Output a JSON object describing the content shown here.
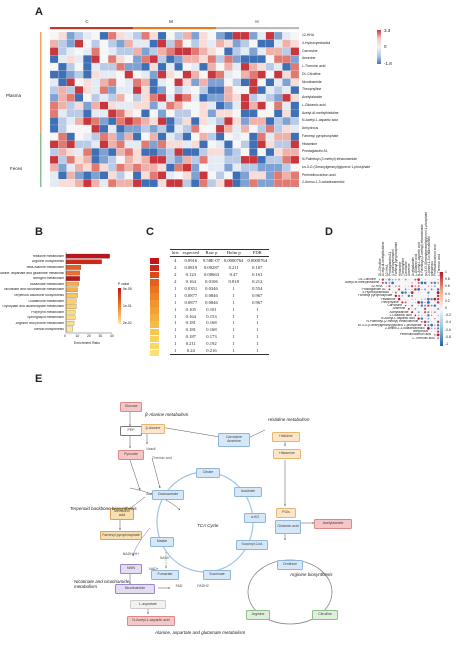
{
  "panels": {
    "a": "A",
    "b": "B",
    "c": "C",
    "d": "D",
    "e": "E"
  },
  "panel_a": {
    "groups": [
      "C",
      "M",
      "H"
    ],
    "group_colors": [
      "#c0392b",
      "#e67e22",
      "#bbbbbb"
    ],
    "row_groups": [
      {
        "name": "Plasma",
        "color": "#f4a460"
      },
      {
        "name": "Feces",
        "color": "#8fbc8f"
      }
    ],
    "rows": [
      "12-HHA",
      "4-Hydroxyestradiol",
      "Carnosine",
      "Anserine",
      "L-Threonic acid",
      "DL-Citrulline",
      "Nicotinamide",
      "Theophylline",
      "Acetylalanide",
      "L-Glutamic acid",
      "Acetyl-dl-methylhistidine",
      "N-Acetyl-L-aspartic acid",
      "Anhydrous",
      "Farnesyl pyrophosphate",
      "Histamine",
      "Prostaglandin A1",
      "N-Palmitoyl-(2-methyl) ethanolamide",
      "sn-3-O-(Geranylgeranyl)glycerol 1-phosphate",
      "Perimidinocarbon acid",
      "2-Amino-1,3-octadecanediol"
    ],
    "colorbar": {
      "max": "3.3",
      "mid": "0",
      "min": "-1.8"
    }
  },
  "panel_b": {
    "categories": [
      "Histidine metabolism",
      "Arginine biosynthesis",
      "beta-Alanine metabolism",
      "Alanine, aspartate and glutamate metabolism",
      "Nitrogen metabolism",
      "Butanoate metabolism",
      "Nicotinate and nicotinamide metabolism",
      "Terpenoid backbone biosynthesis",
      "Glutathione metabolism",
      "Glyoxylate and dicarboxylate metabolism",
      "Porphyrin metabolism",
      "Sphingolipid metabolism",
      "Arginine and proline metabolism",
      "Steroid biosynthesis"
    ],
    "values": [
      38,
      31,
      13,
      12,
      12,
      11,
      10,
      10,
      9,
      9,
      8,
      8,
      7,
      6
    ],
    "colors": [
      "#c0141c",
      "#d02818",
      "#e06020",
      "#e87030",
      "#c0141c",
      "#f4b050",
      "#f4b050",
      "#f8c860",
      "#fad070",
      "#fad070",
      "#fbdc80",
      "#fbdc80",
      "#fce090",
      "#fde8a0"
    ],
    "xticks": [
      "0",
      "10",
      "20",
      "30",
      "40"
    ],
    "xlabel": "Enrichment Ratio",
    "legend_title": "P value",
    "legend_ticks": [
      "5e-05",
      "1e-01",
      "2e-02"
    ]
  },
  "panel_c": {
    "headers": [
      "hits",
      "expected",
      "Raw p",
      "Holm p",
      "FDR"
    ],
    "rows": [
      [
        "4",
        "0.0916",
        "9.58E-07",
        "0.0000764",
        "0.0000764"
      ],
      [
        "2",
        "0.0819",
        "0.00287",
        "0.211",
        "0.107"
      ],
      [
        "2",
        "0.123",
        "0.00663",
        "0.47",
        "0.161"
      ],
      [
        "2",
        "0.164",
        "0.0106",
        "0.818",
        "0.212"
      ],
      [
        "1",
        "0.0351",
        "0.0346",
        "1",
        "0.554"
      ],
      [
        "1",
        "0.0877",
        "0.0846",
        "1",
        "0.967"
      ],
      [
        "1",
        "0.0877",
        "0.0846",
        "1",
        "0.967"
      ],
      [
        "1",
        "0.105",
        "0.101",
        "1",
        "1"
      ],
      [
        "1",
        "0.164",
        "0.153",
        "1",
        "1"
      ],
      [
        "1",
        "0.181",
        "0.168",
        "1",
        "1"
      ],
      [
        "1",
        "0.181",
        "0.168",
        "1",
        "1"
      ],
      [
        "1",
        "0.187",
        "0.173",
        "1",
        "1"
      ],
      [
        "1",
        "0.211",
        "0.192",
        "1",
        "1"
      ],
      [
        "1",
        "0.24",
        "0.216",
        "1",
        "1"
      ]
    ],
    "swatches": [
      "#c0141c",
      "#cc2a18",
      "#dc4a1a",
      "#e4601e",
      "#ea7424",
      "#ee8428",
      "#f0942e",
      "#f2a234",
      "#f4b03c",
      "#f6bc46",
      "#f8c650",
      "#f9d05c",
      "#fad868",
      "#fbe074"
    ]
  },
  "panel_d": {
    "rows": [
      "DL-Citrulline",
      "Acetyl-dl-methylhistidine",
      "12-HHA",
      "Prostaglandin A1",
      "4-Hydroxyestradiol",
      "Farnesyl pyrophosphate",
      "Histamine",
      "Theophylline",
      "Carnosine",
      "Anserine",
      "Acetylalanide",
      "L-Glutamic acid",
      "N-Acetyl-L-aspartic acid",
      "N-Palmitoyl-(2-methyl) ethanolamide",
      "sn-3-O-(Geranylgeranyl)glycerol 1-phosphate",
      "2-Amino-1,3-octadecanediol",
      "anhydrous",
      "Perimidinocarbon acid",
      "L-Threonic acid"
    ],
    "colorbar_ticks": [
      "1",
      "0.8",
      "0.6",
      "0.4",
      "0.2",
      "0",
      "-0.2",
      "-0.4",
      "-0.6",
      "-0.8",
      "-1"
    ]
  },
  "panel_e": {
    "sections": {
      "beta_alanine": "β-Alanine metabolism",
      "histidine": "Histidine metabolism",
      "terpenoid": "Terpenoid backbone biosynthesis",
      "tca": "TCA Cycle",
      "nicotinate": "Nicotinate and nicotinamide metabolism",
      "arginine_bio": "Arginine biosynthesis",
      "alanine": "Alanine, aspartate and glutamate metabolism"
    },
    "nodes": {
      "glucose": "Glucose",
      "pep": "PEP",
      "pyruvate": "Pyruvate",
      "acetylcoa": "Acetyl-CoA",
      "mevalonic": "Mevalonic acid",
      "farnesyl": "Farnesyl pyrophosphate",
      "nadh": "NADH+H+",
      "nad": "NAD+",
      "nmn": "NMN",
      "nicotinamide": "Nicotinamide",
      "laspartate": "L-aspartate",
      "nacetylasp": "N-Acetyl-L-aspartic acid",
      "ualanine": "β-Alanine",
      "uracil": "Uracil",
      "threonic": "Threonic acid",
      "carnosine": "Carnosine Anserine",
      "histidine": "Histidine",
      "histamine": "Histamine",
      "pgs": "PGIs",
      "glutamic": "Glutamic acid",
      "acetylalanide": "Acetylalanide",
      "ornithine": "Ornithine",
      "arginine": "Arginine",
      "citrulline": "Citrulline",
      "citrate": "Citrate",
      "isocitrate": "Isocitrate",
      "akg": "α-KG",
      "succinylcoa": "Succinyl-CoA",
      "succinate": "Succinate",
      "fumarate": "Fumarate",
      "malate": "Malate",
      "oxaloacetate": "Oxaloacetate",
      "nadh2": "NADH",
      "fad": "FAD",
      "fadh2": "FADH2"
    }
  }
}
